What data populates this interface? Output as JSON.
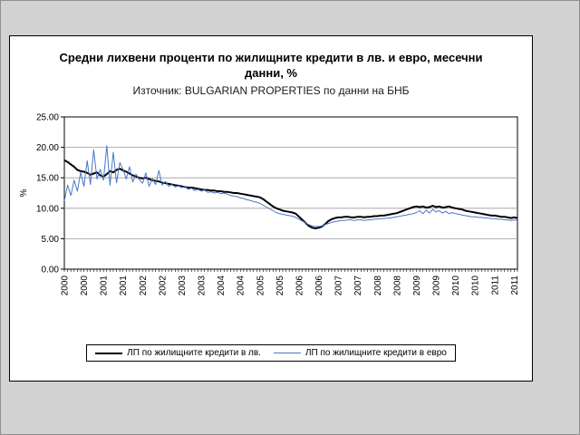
{
  "page": {
    "background_color": "#d2d2d2",
    "panel_background": "#ffffff"
  },
  "chart_data": {
    "type": "line",
    "title": "Средни лихвени проценти по жилищните кредити в лв. и евро, месечни данни, %",
    "subtitle": "Източник: BULGARIAN PROPERTIES по данни на БНБ",
    "ylabel": "%",
    "ylim": [
      0,
      25
    ],
    "yticks": [
      0,
      5,
      10,
      15,
      20,
      25
    ],
    "ytick_labels": [
      "0.00",
      "5.00",
      "10.00",
      "15.00",
      "20.00",
      "25.00"
    ],
    "grid": true,
    "legend_position": "bottom",
    "x_unit": "month",
    "x_label_every_months": 6,
    "xtick_labels": [
      "2000",
      "2000",
      "2001",
      "2001",
      "2002",
      "2002",
      "2003",
      "2003",
      "2004",
      "2004",
      "2005",
      "2005",
      "2006",
      "2006",
      "2007",
      "2007",
      "2008",
      "2008",
      "2009",
      "2009",
      "2010",
      "2010",
      "2011",
      "2011"
    ],
    "series": [
      {
        "name": "ЛП по жилищните кредити в лв.",
        "color": "#000000",
        "stroke_width": 2,
        "values": [
          17.9,
          17.6,
          17.2,
          16.8,
          16.3,
          16.1,
          16.0,
          15.8,
          15.5,
          15.7,
          15.9,
          15.4,
          15.2,
          15.6,
          16.1,
          15.9,
          16.3,
          16.5,
          16.2,
          16.0,
          15.7,
          15.4,
          15.2,
          15.0,
          14.9,
          15.0,
          14.8,
          14.6,
          14.5,
          14.4,
          14.2,
          14.1,
          14.0,
          13.9,
          13.8,
          13.7,
          13.6,
          13.5,
          13.4,
          13.4,
          13.3,
          13.2,
          13.1,
          13.0,
          13.0,
          12.9,
          12.9,
          12.8,
          12.8,
          12.7,
          12.7,
          12.6,
          12.5,
          12.5,
          12.4,
          12.3,
          12.2,
          12.1,
          12.0,
          11.9,
          11.8,
          11.5,
          11.1,
          10.7,
          10.3,
          10.0,
          9.8,
          9.6,
          9.5,
          9.4,
          9.3,
          9.1,
          8.6,
          8.1,
          7.6,
          7.1,
          6.8,
          6.7,
          6.8,
          7.0,
          7.4,
          7.9,
          8.2,
          8.4,
          8.5,
          8.5,
          8.6,
          8.6,
          8.5,
          8.5,
          8.6,
          8.6,
          8.5,
          8.6,
          8.6,
          8.7,
          8.7,
          8.8,
          8.8,
          8.9,
          9.0,
          9.1,
          9.2,
          9.4,
          9.6,
          9.8,
          10.0,
          10.2,
          10.3,
          10.2,
          10.3,
          10.1,
          10.2,
          10.4,
          10.2,
          10.3,
          10.1,
          10.2,
          10.3,
          10.1,
          10.0,
          9.9,
          9.8,
          9.6,
          9.5,
          9.4,
          9.3,
          9.2,
          9.1,
          9.0,
          8.9,
          8.8,
          8.8,
          8.7,
          8.6,
          8.6,
          8.5,
          8.4,
          8.5,
          8.4
        ]
      },
      {
        "name": "ЛП по жилищните кредити в евро",
        "color": "#4a77c6",
        "stroke_width": 1,
        "values": [
          11.2,
          13.8,
          12.1,
          14.6,
          12.8,
          15.9,
          13.6,
          17.8,
          13.9,
          19.6,
          14.8,
          16.4,
          14.6,
          20.3,
          13.8,
          19.2,
          14.2,
          17.5,
          16.4,
          14.8,
          16.8,
          14.3,
          15.6,
          14.7,
          14.1,
          15.8,
          13.6,
          14.9,
          13.9,
          16.2,
          13.8,
          14.4,
          13.6,
          13.9,
          13.5,
          13.7,
          13.4,
          13.6,
          13.1,
          13.3,
          12.9,
          13.1,
          12.8,
          13.0,
          12.6,
          12.7,
          12.5,
          12.6,
          12.4,
          12.5,
          12.3,
          12.1,
          12.0,
          11.9,
          11.7,
          11.6,
          11.4,
          11.3,
          11.1,
          11.0,
          10.8,
          10.5,
          10.2,
          9.9,
          9.6,
          9.3,
          9.1,
          9.0,
          8.9,
          8.8,
          8.7,
          8.5,
          8.2,
          7.9,
          7.6,
          7.3,
          7.1,
          7.0,
          7.0,
          7.1,
          7.3,
          7.5,
          7.7,
          7.8,
          7.9,
          8.0,
          8.0,
          8.1,
          8.1,
          8.0,
          8.1,
          8.1,
          8.0,
          8.1,
          8.1,
          8.2,
          8.2,
          8.3,
          8.3,
          8.4,
          8.4,
          8.5,
          8.6,
          8.7,
          8.8,
          8.9,
          9.0,
          9.1,
          9.3,
          9.6,
          9.1,
          9.7,
          9.2,
          9.8,
          9.4,
          9.6,
          9.2,
          9.5,
          9.1,
          9.3,
          9.1,
          9.0,
          8.9,
          8.8,
          8.7,
          8.6,
          8.6,
          8.5,
          8.5,
          8.4,
          8.4,
          8.3,
          8.3,
          8.2,
          8.2,
          8.1,
          8.1,
          8.0,
          8.1,
          8.0
        ]
      }
    ]
  }
}
